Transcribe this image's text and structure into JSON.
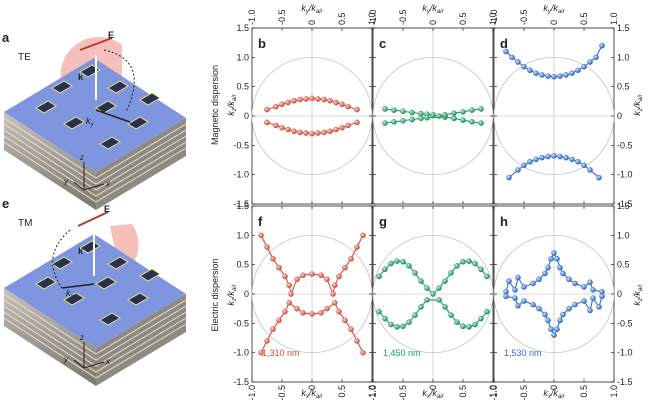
{
  "figure": {
    "panel_labels": [
      "a",
      "b",
      "c",
      "d",
      "e",
      "f",
      "g",
      "h"
    ],
    "row_labels": {
      "top": "Magnetic dispersion",
      "bottom": "Electric dispersion"
    },
    "left_panels": {
      "a": {
        "mode": "TE",
        "field": "E",
        "wavevector": "k",
        "inplane": "k",
        "inplane_sub": "y",
        "axes": [
          "z",
          "y",
          "x"
        ]
      },
      "e": {
        "mode": "TM",
        "field": "E",
        "wavevector": "k",
        "inplane": "k",
        "inplane_sub": "x",
        "axes": [
          "z",
          "y",
          "x"
        ]
      }
    },
    "wavelength_labels": [
      "1,310 nm",
      "1,450 nm",
      "1,530 nm"
    ],
    "axis_labels": {
      "ky": "k",
      "ky_sub": "y",
      "kx": "k",
      "kx_sub": "x",
      "kz": "k",
      "kz_sub": "z",
      "den": "/k",
      "den_sub": "air"
    },
    "colors": {
      "red": "#d0503f",
      "green": "#1f9c62",
      "blue": "#2f6fca",
      "circle": "#bbbbbb"
    }
  },
  "chart_data": [
    {
      "panel": "b",
      "type": "scatter",
      "x_axis": "ky/kair",
      "y_axis": "kz/kair",
      "xlim": [
        -1,
        1
      ],
      "ylim": [
        -1.5,
        1.5
      ],
      "x_ticks": [
        "-1.0",
        "-0.5",
        "0",
        "0.5",
        "1.0"
      ],
      "y_ticks": [
        "-1.5",
        "-1.0",
        "-0.5",
        "0",
        "0.5",
        "1.0",
        "1.5"
      ],
      "series": [
        {
          "color": "red",
          "points": [
            [
              -0.75,
              0.11
            ],
            [
              -0.6,
              0.16
            ],
            [
              -0.5,
              0.2
            ],
            [
              -0.4,
              0.23
            ],
            [
              -0.3,
              0.26
            ],
            [
              -0.2,
              0.28
            ],
            [
              -0.1,
              0.29
            ],
            [
              0,
              0.3
            ],
            [
              0.1,
              0.29
            ],
            [
              0.2,
              0.28
            ],
            [
              0.3,
              0.26
            ],
            [
              0.4,
              0.23
            ],
            [
              0.5,
              0.2
            ],
            [
              0.6,
              0.16
            ],
            [
              0.75,
              0.11
            ],
            [
              -0.75,
              -0.11
            ],
            [
              -0.6,
              -0.16
            ],
            [
              -0.5,
              -0.2
            ],
            [
              -0.4,
              -0.23
            ],
            [
              -0.3,
              -0.26
            ],
            [
              -0.2,
              -0.28
            ],
            [
              -0.1,
              -0.29
            ],
            [
              0,
              -0.3
            ],
            [
              0.1,
              -0.29
            ],
            [
              0.2,
              -0.28
            ],
            [
              0.3,
              -0.26
            ],
            [
              0.4,
              -0.23
            ],
            [
              0.5,
              -0.2
            ],
            [
              0.6,
              -0.16
            ],
            [
              0.75,
              -0.11
            ]
          ]
        }
      ]
    },
    {
      "panel": "c",
      "type": "scatter",
      "x_axis": "ky/kair",
      "y_axis": "kz/kair",
      "xlim": [
        -1,
        1
      ],
      "ylim": [
        -1.5,
        1.5
      ],
      "x_ticks": [
        "-1.0",
        "-0.5",
        "0",
        "0.5",
        "1.0"
      ],
      "series": [
        {
          "color": "green",
          "points": [
            [
              -0.8,
              0.12
            ],
            [
              -0.65,
              0.1
            ],
            [
              -0.5,
              0.08
            ],
            [
              -0.35,
              0.06
            ],
            [
              -0.2,
              0.04
            ],
            [
              -0.1,
              0.03
            ],
            [
              0,
              0.02
            ],
            [
              0.1,
              0.0
            ],
            [
              0.2,
              -0.02
            ],
            [
              0.35,
              -0.04
            ],
            [
              0.5,
              -0.07
            ],
            [
              0.65,
              -0.1
            ],
            [
              0.8,
              -0.12
            ],
            [
              -0.8,
              -0.12
            ],
            [
              -0.65,
              -0.1
            ],
            [
              -0.5,
              -0.08
            ],
            [
              -0.35,
              -0.06
            ],
            [
              -0.2,
              -0.04
            ],
            [
              -0.1,
              -0.03
            ],
            [
              0.2,
              0.02
            ],
            [
              0.35,
              0.05
            ],
            [
              0.5,
              0.07
            ],
            [
              0.65,
              0.1
            ],
            [
              0.8,
              0.12
            ]
          ]
        }
      ]
    },
    {
      "panel": "d",
      "type": "scatter",
      "x_axis": "ky/kair",
      "y_axis": "kz/kair",
      "xlim": [
        -1,
        1
      ],
      "ylim": [
        -1.5,
        1.5
      ],
      "x_ticks": [
        "-1.0",
        "-0.5",
        "0",
        "0.5",
        "1.0"
      ],
      "y_ticks_right": [
        "-1.5",
        "-1.0",
        "-0.5",
        "0",
        "0.5",
        "1.0",
        "1.5"
      ],
      "series": [
        {
          "color": "blue",
          "points": [
            [
              -0.8,
              1.1
            ],
            [
              -0.7,
              1.0
            ],
            [
              -0.6,
              0.92
            ],
            [
              -0.5,
              0.84
            ],
            [
              -0.4,
              0.78
            ],
            [
              -0.3,
              0.73
            ],
            [
              -0.2,
              0.7
            ],
            [
              -0.1,
              0.68
            ],
            [
              0,
              0.67
            ],
            [
              0.1,
              0.68
            ],
            [
              0.2,
              0.7
            ],
            [
              0.3,
              0.73
            ],
            [
              0.4,
              0.78
            ],
            [
              0.5,
              0.84
            ],
            [
              0.6,
              0.92
            ],
            [
              0.7,
              1.0
            ],
            [
              0.8,
              1.2
            ],
            [
              -0.75,
              -1.05
            ],
            [
              -0.6,
              -0.92
            ],
            [
              -0.5,
              -0.84
            ],
            [
              -0.4,
              -0.78
            ],
            [
              -0.3,
              -0.74
            ],
            [
              -0.2,
              -0.71
            ],
            [
              -0.1,
              -0.69
            ],
            [
              0,
              -0.68
            ],
            [
              0.1,
              -0.69
            ],
            [
              0.2,
              -0.71
            ],
            [
              0.3,
              -0.74
            ],
            [
              0.4,
              -0.78
            ],
            [
              0.5,
              -0.84
            ],
            [
              0.6,
              -0.92
            ],
            [
              0.75,
              -1.05
            ]
          ]
        }
      ]
    },
    {
      "panel": "f",
      "type": "scatter",
      "x_axis": "kx/kair",
      "y_axis": "kz/kair",
      "xlim": [
        -1,
        1
      ],
      "ylim": [
        -1.5,
        1.5
      ],
      "x_ticks": [
        "-1.0",
        "-0.5",
        "0",
        "0.5",
        "1.0"
      ],
      "y_ticks": [
        "-1.5",
        "-1.0",
        "-0.5",
        "0",
        "0.5",
        "1.0",
        "1.5"
      ],
      "series": [
        {
          "color": "red",
          "points": [
            [
              -0.85,
              1.0
            ],
            [
              -0.75,
              0.8
            ],
            [
              -0.65,
              0.6
            ],
            [
              -0.55,
              0.45
            ],
            [
              -0.45,
              0.3
            ],
            [
              -0.38,
              0.15
            ],
            [
              -0.35,
              0
            ],
            [
              -0.38,
              -0.15
            ],
            [
              -0.45,
              -0.3
            ],
            [
              -0.55,
              -0.45
            ],
            [
              -0.65,
              -0.6
            ],
            [
              -0.75,
              -0.8
            ],
            [
              -0.85,
              -1.0
            ],
            [
              0.85,
              1.0
            ],
            [
              0.75,
              0.8
            ],
            [
              0.65,
              0.6
            ],
            [
              0.55,
              0.45
            ],
            [
              0.45,
              0.3
            ],
            [
              0.38,
              0.15
            ],
            [
              0.35,
              0
            ],
            [
              0.38,
              -0.15
            ],
            [
              0.45,
              -0.3
            ],
            [
              0.55,
              -0.45
            ],
            [
              0.65,
              -0.6
            ],
            [
              0.75,
              -0.8
            ],
            [
              0.85,
              -1.0
            ],
            [
              -0.25,
              0.25
            ],
            [
              -0.15,
              0.32
            ],
            [
              0,
              0.34
            ],
            [
              0.15,
              0.32
            ],
            [
              0.25,
              0.25
            ],
            [
              -0.25,
              -0.25
            ],
            [
              -0.15,
              -0.32
            ],
            [
              0,
              -0.34
            ],
            [
              0.15,
              -0.32
            ],
            [
              0.25,
              -0.25
            ]
          ]
        }
      ]
    },
    {
      "panel": "g",
      "type": "scatter",
      "x_axis": "kx/kair",
      "y_axis": "kz/kair",
      "xlim": [
        -1,
        1
      ],
      "ylim": [
        -1.5,
        1.5
      ],
      "x_ticks": [
        "-1.0",
        "-0.5",
        "0",
        "0.5",
        "1.0"
      ],
      "series": [
        {
          "color": "green",
          "points": [
            [
              -0.9,
              0.3
            ],
            [
              -0.8,
              0.42
            ],
            [
              -0.7,
              0.52
            ],
            [
              -0.6,
              0.56
            ],
            [
              -0.5,
              0.55
            ],
            [
              -0.4,
              0.48
            ],
            [
              -0.3,
              0.36
            ],
            [
              -0.2,
              0.22
            ],
            [
              -0.1,
              0.1
            ],
            [
              0,
              0
            ],
            [
              0.1,
              0.1
            ],
            [
              0.2,
              0.22
            ],
            [
              0.3,
              0.36
            ],
            [
              0.4,
              0.48
            ],
            [
              0.5,
              0.55
            ],
            [
              0.6,
              0.56
            ],
            [
              0.7,
              0.52
            ],
            [
              0.8,
              0.42
            ],
            [
              0.9,
              0.3
            ],
            [
              -0.9,
              -0.3
            ],
            [
              -0.8,
              -0.42
            ],
            [
              -0.7,
              -0.52
            ],
            [
              -0.6,
              -0.56
            ],
            [
              -0.5,
              -0.55
            ],
            [
              -0.4,
              -0.48
            ],
            [
              -0.3,
              -0.36
            ],
            [
              -0.2,
              -0.22
            ],
            [
              -0.1,
              -0.1
            ],
            [
              0.1,
              -0.1
            ],
            [
              0.2,
              -0.22
            ],
            [
              0.3,
              -0.36
            ],
            [
              0.4,
              -0.48
            ],
            [
              0.5,
              -0.55
            ],
            [
              0.6,
              -0.56
            ],
            [
              0.7,
              -0.52
            ],
            [
              0.8,
              -0.42
            ],
            [
              0.9,
              -0.3
            ]
          ]
        }
      ]
    },
    {
      "panel": "h",
      "type": "scatter",
      "x_axis": "kx/kair",
      "y_axis": "kz/kair",
      "xlim": [
        -1,
        1
      ],
      "ylim": [
        -1.5,
        1.5
      ],
      "x_ticks": [
        "-1.0",
        "-0.5",
        "0",
        "0.5",
        "1.0"
      ],
      "y_ticks_right": [
        "-1.5",
        "-1.0",
        "-0.5",
        "0",
        "0.5",
        "1.0",
        "1.5"
      ],
      "series": [
        {
          "color": "blue",
          "points": [
            [
              0,
              0.7
            ],
            [
              -0.05,
              0.6
            ],
            [
              -0.1,
              0.45
            ],
            [
              -0.15,
              0.35
            ],
            [
              -0.25,
              0.25
            ],
            [
              -0.35,
              0.18
            ],
            [
              -0.5,
              0.12
            ],
            [
              -0.65,
              0.07
            ],
            [
              -0.8,
              0.04
            ],
            [
              0.05,
              0.6
            ],
            [
              0.1,
              0.45
            ],
            [
              0.15,
              0.35
            ],
            [
              0.25,
              0.25
            ],
            [
              0.35,
              0.18
            ],
            [
              0.5,
              0.12
            ],
            [
              0.65,
              0.07
            ],
            [
              0.8,
              0.04
            ],
            [
              0,
              -0.7
            ],
            [
              -0.05,
              -0.6
            ],
            [
              -0.1,
              -0.45
            ],
            [
              -0.15,
              -0.35
            ],
            [
              -0.25,
              -0.25
            ],
            [
              -0.35,
              -0.18
            ],
            [
              -0.5,
              -0.12
            ],
            [
              -0.65,
              -0.07
            ],
            [
              -0.8,
              -0.04
            ],
            [
              0.05,
              -0.6
            ],
            [
              0.1,
              -0.45
            ],
            [
              0.15,
              -0.35
            ],
            [
              0.25,
              -0.25
            ],
            [
              0.35,
              -0.18
            ],
            [
              0.5,
              -0.12
            ],
            [
              0.65,
              -0.07
            ],
            [
              0.8,
              -0.04
            ],
            [
              -0.6,
              0.28
            ],
            [
              -0.75,
              0.22
            ],
            [
              0.6,
              -0.28
            ],
            [
              0.75,
              -0.22
            ],
            [
              0.6,
              0.2
            ],
            [
              -0.6,
              -0.2
            ]
          ]
        }
      ]
    }
  ]
}
